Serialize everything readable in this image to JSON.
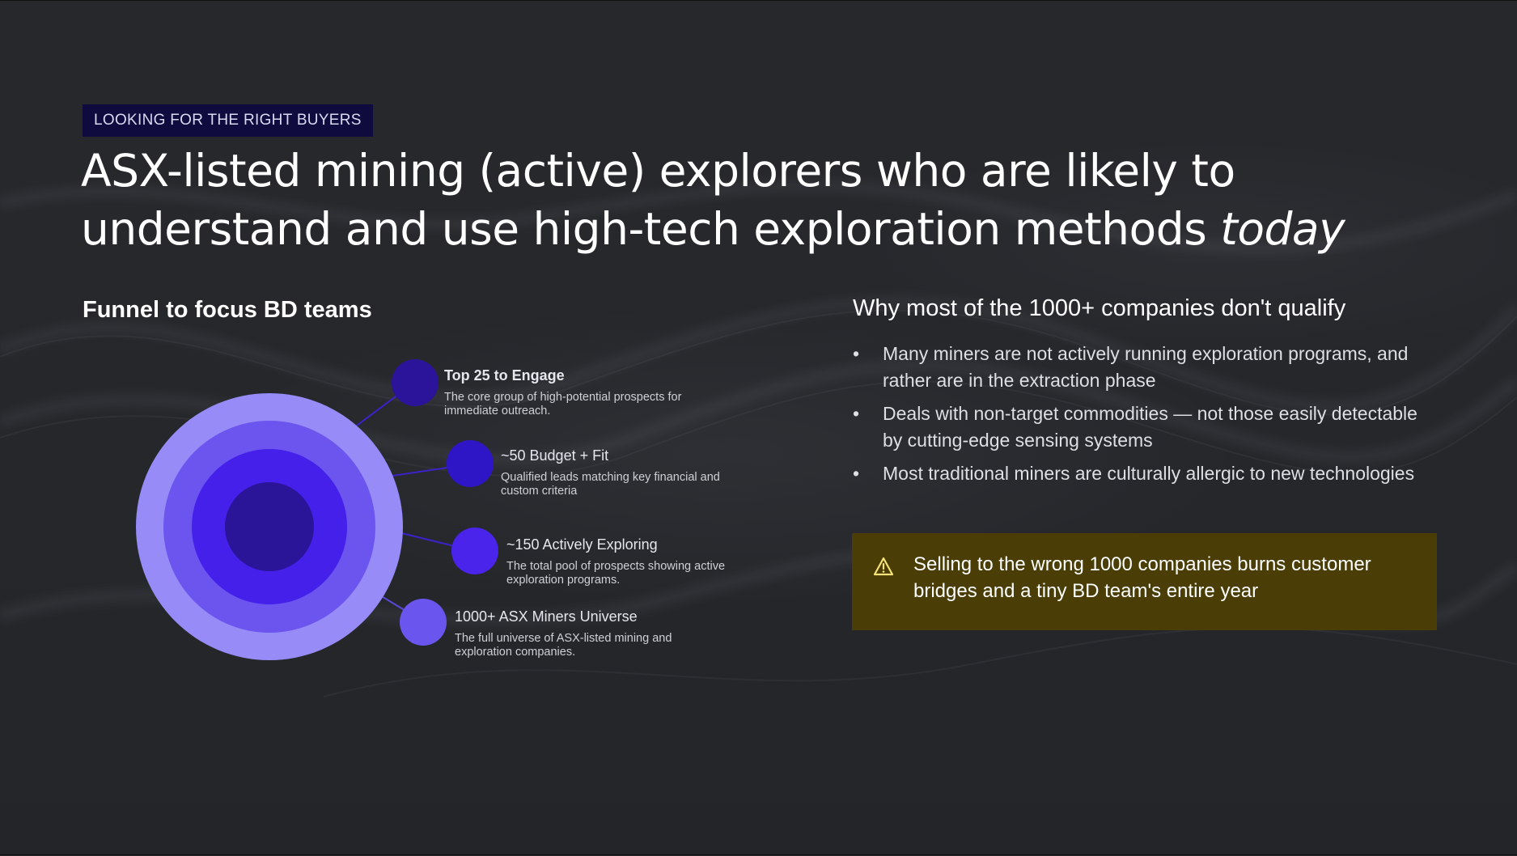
{
  "tag": "LOOKING FOR THE RIGHT BUYERS",
  "title": {
    "main": "ASX-listed mining (active) explorers who are likely to understand and use high-tech exploration methods",
    "emphasis": "today"
  },
  "funnel": {
    "heading": "Funnel to focus BD teams",
    "colors": {
      "ring_outer": "#978bf8",
      "ring_2": "#6b55ee",
      "ring_3": "#4420ea",
      "core": "#2a1598",
      "connector": "#3b22c9"
    },
    "stages": [
      {
        "title": "Top 25 to Engage",
        "description": "The core group of high-potential prospects for immediate outreach.",
        "node_color": "#2b149a"
      },
      {
        "title": "~50 Budget + Fit",
        "description": "Qualified leads matching key financial and custom criteria",
        "node_color": "#2e16c6"
      },
      {
        "title": "~150 Actively Exploring",
        "description": "The total pool of prospects showing active exploration programs.",
        "node_color": "#4a24ea"
      },
      {
        "title": "1000+ ASX Miners Universe",
        "description": "The full universe of ASX-listed mining and exploration companies.",
        "node_color": "#6a56ee"
      }
    ]
  },
  "why": {
    "heading": "Why most of the 1000+ companies don't qualify",
    "bullets": [
      "Many miners are not actively running exploration programs, and rather are in the extraction phase",
      "Deals with non-target commodities — not those easily detectable by cutting-edge sensing systems",
      "Most traditional miners are culturally allergic to new technologies"
    ]
  },
  "callout": {
    "icon": "warning-icon",
    "text": "Selling to the wrong 1000 companies burns customer bridges and a tiny BD team's entire year",
    "background": "#4a3d05"
  }
}
